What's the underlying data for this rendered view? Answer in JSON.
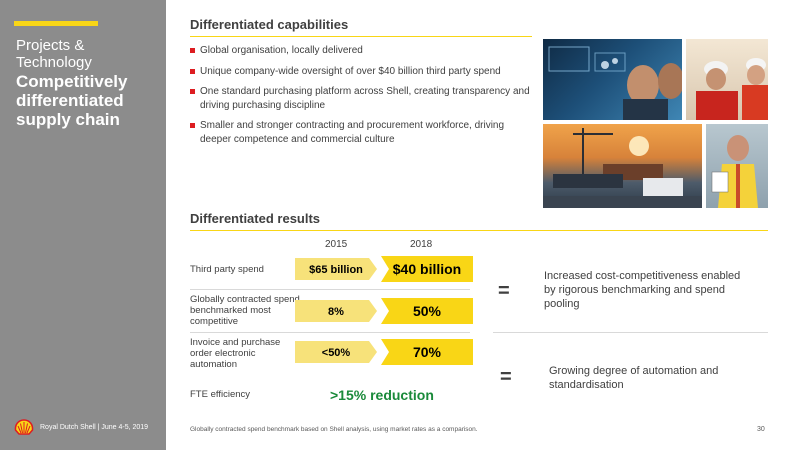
{
  "sidebar": {
    "kicker": "Projects & Technology",
    "title": "Competitively differentiated supply chain",
    "footer": "Royal Dutch Shell | June 4-5, 2019"
  },
  "capabilities": {
    "title": "Differentiated capabilities",
    "bullets": [
      "Global organisation, locally delivered",
      "Unique company-wide oversight of over $40 billion third party spend",
      "One standard purchasing platform across Shell, creating transparency and driving purchasing discipline",
      "Smaller and stronger contracting and procurement workforce, driving deeper competence and commercial culture"
    ]
  },
  "results": {
    "title": "Differentiated results",
    "year_2015": "2015",
    "year_2018": "2018",
    "rows": [
      {
        "label": "Third party spend",
        "v2015": "$65 billion",
        "v2018": "$40 billion"
      },
      {
        "label": "Globally contracted spend benchmarked most competitive",
        "v2015": "8%",
        "v2018": "50%"
      },
      {
        "label": "Invoice and purchase order electronic automation",
        "v2015": "<50%",
        "v2018": "70%"
      },
      {
        "label": "FTE efficiency",
        "value": ">15% reduction"
      }
    ],
    "equals": "=",
    "outcome_1": "Increased cost-competitiveness enabled by rigorous benchmarking and spend pooling",
    "outcome_2": "Growing degree of automation and standardisation"
  },
  "footnote": "Globally contracted spend benchmark based on Shell analysis, using market rates as a comparison.",
  "page_number": "30",
  "colors": {
    "accent": "#f9d616",
    "green": "#1a8a3a",
    "red": "#dd1d21",
    "sidebar": "#8c8c8c"
  }
}
